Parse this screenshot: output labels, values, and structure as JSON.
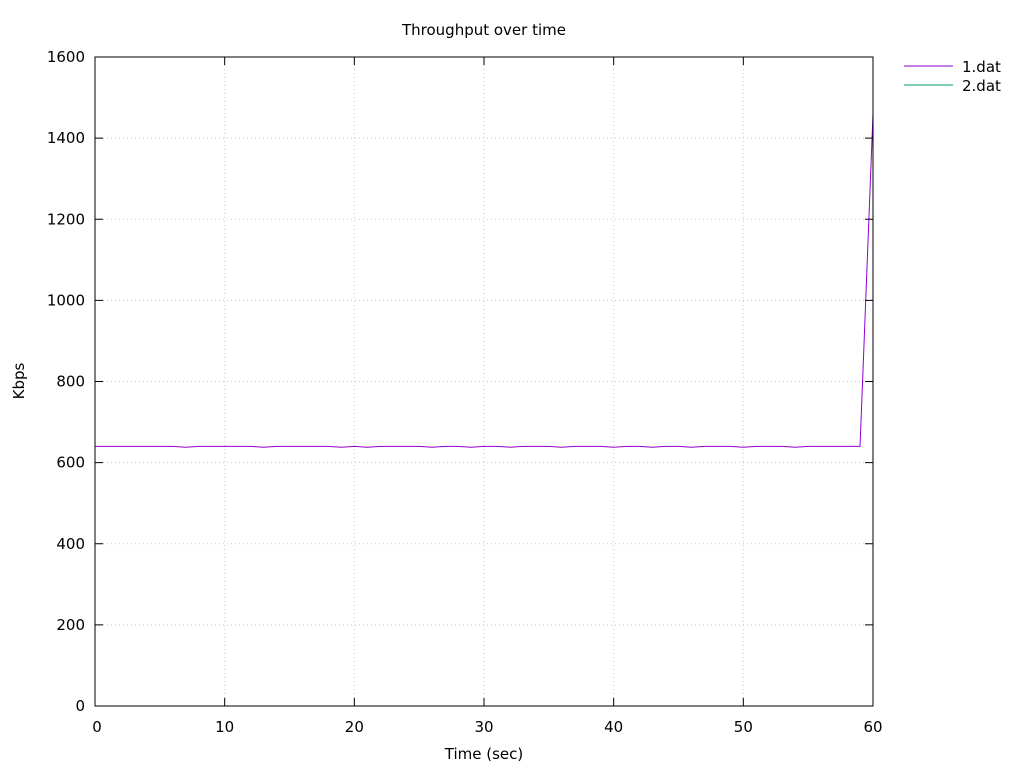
{
  "chart_data": {
    "type": "line",
    "title": "Throughput over time",
    "xlabel": "Time (sec)",
    "ylabel": "Kbps",
    "xlim": [
      0,
      60
    ],
    "ylim": [
      0,
      1600
    ],
    "xticks": [
      0,
      10,
      20,
      30,
      40,
      50,
      60
    ],
    "yticks": [
      0,
      200,
      400,
      600,
      800,
      1000,
      1200,
      1400,
      1600
    ],
    "grid": true,
    "legend_position": "top-right outside",
    "series": [
      {
        "name": "1.dat",
        "color": "#9400d3",
        "x": [
          0,
          1,
          2,
          3,
          4,
          5,
          6,
          7,
          8,
          9,
          10,
          11,
          12,
          13,
          14,
          15,
          16,
          17,
          18,
          19,
          20,
          21,
          22,
          23,
          24,
          25,
          26,
          27,
          28,
          29,
          30,
          31,
          32,
          33,
          34,
          35,
          36,
          37,
          38,
          39,
          40,
          41,
          42,
          43,
          44,
          45,
          46,
          47,
          48,
          49,
          50,
          51,
          52,
          53,
          54,
          55,
          56,
          57,
          58,
          59,
          60
        ],
        "values": [
          640,
          640,
          640,
          640,
          640,
          640,
          640,
          638,
          640,
          640,
          640,
          640,
          640,
          638,
          640,
          640,
          640,
          640,
          640,
          638,
          640,
          638,
          640,
          640,
          640,
          640,
          638,
          640,
          640,
          638,
          640,
          640,
          638,
          640,
          640,
          640,
          638,
          640,
          640,
          640,
          638,
          640,
          640,
          638,
          640,
          640,
          638,
          640,
          640,
          640,
          638,
          640,
          640,
          640,
          638,
          640,
          640,
          640,
          640,
          640,
          1460
        ]
      },
      {
        "name": "2.dat",
        "color": "#009e73",
        "x": [],
        "values": []
      }
    ]
  }
}
